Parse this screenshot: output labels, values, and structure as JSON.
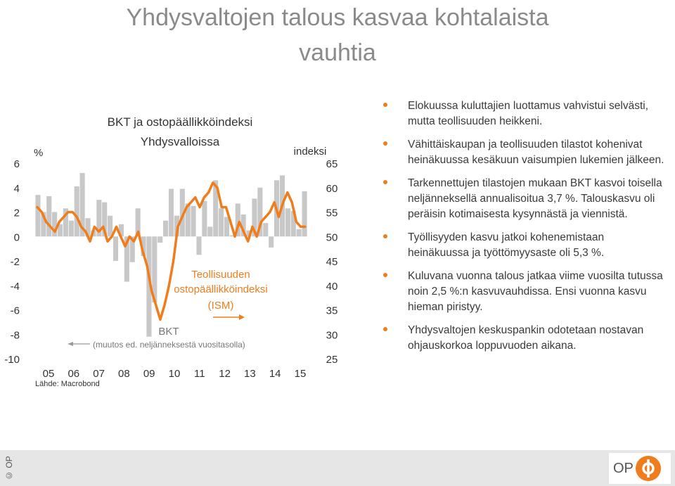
{
  "slide": {
    "title_line1": "Yhdysvaltojen talous kasvaa kohtalaista",
    "title_line2": "vauhtia"
  },
  "chart": {
    "title_line1": "BKT ja ostopäällikköindeksi",
    "title_line2": "Yhdysvalloissa",
    "left_unit": "%",
    "right_unit": "indeksi",
    "ism_label_line1": "Teollisuuden",
    "ism_label_line2": "ostopäällikköindeksi",
    "ism_label_line3": "(ISM)",
    "gdp_label": "BKT",
    "gdp_note": "(muutos ed. neljänneksestä vuositasolla)",
    "source": "Lähde: Macrobond"
  },
  "chart_data": {
    "type": "bar+line",
    "left_axis": {
      "label": "%",
      "ticks": [
        6,
        4,
        2,
        0,
        -2,
        -4,
        -6,
        -8,
        -10
      ],
      "ylim": [
        -10,
        6
      ]
    },
    "right_axis": {
      "label": "indeksi",
      "ticks": [
        65,
        60,
        55,
        50,
        45,
        40,
        35,
        30,
        25
      ],
      "ylim": [
        25,
        65
      ]
    },
    "x_ticks": [
      "05",
      "06",
      "07",
      "08",
      "09",
      "10",
      "11",
      "12",
      "13",
      "14",
      "15"
    ],
    "series": [
      {
        "name": "BKT",
        "kind": "bar",
        "axis": "left",
        "color": "#c8c8c8",
        "values": [
          3.4,
          2.0,
          3.3,
          2.0,
          1.0,
          2.3,
          1.3,
          4.1,
          5.2,
          1.5,
          0.5,
          3.0,
          2.8,
          1.7,
          -2.0,
          1.0,
          -3.7,
          -2.1,
          2.3,
          -1.6,
          -8.2,
          -5.4,
          -0.5,
          1.3,
          3.9,
          1.7,
          3.9,
          2.7,
          2.5,
          -1.5,
          2.9,
          0.8,
          4.6,
          2.3,
          1.6,
          0.1,
          2.7,
          1.8,
          0.5,
          3.1,
          4.0,
          1.1,
          -0.9,
          4.6,
          5.0,
          2.3,
          2.1,
          0.6,
          3.7
        ]
      },
      {
        "name": "Teollisuuden ostopäällikköindeksi (ISM)",
        "kind": "line",
        "axis": "right",
        "color": "#f07d1c",
        "values": [
          56,
          55,
          53,
          52,
          51,
          53,
          54,
          55,
          55,
          54,
          52,
          51,
          49,
          52,
          51,
          52,
          49,
          50,
          52,
          50,
          48,
          50,
          49,
          51,
          47,
          44,
          39,
          36,
          33,
          36,
          40,
          45,
          52,
          54,
          56,
          57,
          58,
          56,
          58,
          59,
          61,
          60,
          56,
          56,
          53,
          50,
          53,
          51,
          49,
          52,
          50,
          53,
          54,
          55,
          57,
          54,
          57,
          59,
          57,
          53,
          52,
          52
        ]
      }
    ]
  },
  "bullets": [
    "Elokuussa kuluttajien luottamus vahvistui selvästi, mutta teollisuuden heikkeni.",
    "Vähittäiskaupan ja teollisuuden tilastot kohenivat heinäkuussa kesäkuun vaisumpien lukemien jälkeen.",
    "Tarkennettujen tilastojen mukaan BKT kasvoi toisella neljänneksellä annualisoitua 3,7 %. Talouskasvu oli peräisin kotimaisesta kysynnästä ja viennistä.",
    "Työllisyyden kasvu jatkoi kohenemistaan heinäkuussa ja työttömyysaste oli 5,3 %.",
    "Kuluvana vuonna talous jatkaa viime vuosilta tutussa noin 2,5 %:n kasvuvauhdissa. Ensi vuonna kasvu hieman piristyy.",
    "Yhdysvaltojen keskuspankin odotetaan nostavan ohjauskorkoa loppuvuoden aikana."
  ],
  "footer": {
    "copyright": "© OP",
    "logo_text": "OP"
  },
  "colors": {
    "accent": "#f07d1c",
    "bars": "#c8c8c8",
    "title": "#8a8a8a",
    "footer_bg": "#e6e6e6"
  }
}
